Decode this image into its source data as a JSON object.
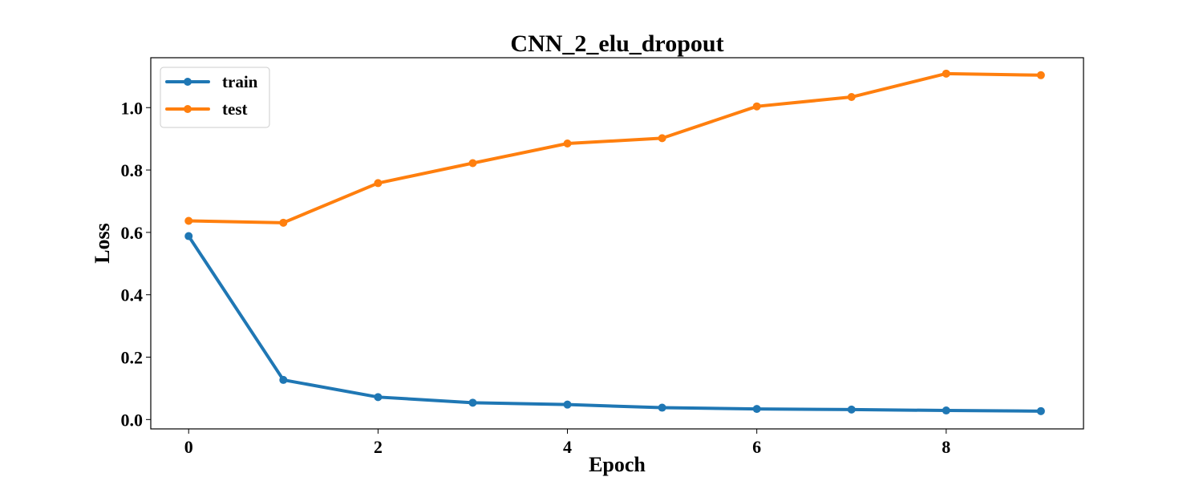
{
  "chart_data": {
    "type": "line",
    "title": "CNN_2_elu_dropout",
    "xlabel": "Epoch",
    "ylabel": "Loss",
    "x": [
      0,
      1,
      2,
      3,
      4,
      5,
      6,
      7,
      8,
      9
    ],
    "xlim": [
      -0.4,
      9.45
    ],
    "ylim": [
      -0.03,
      1.16
    ],
    "xticks": [
      0,
      2,
      4,
      6,
      8
    ],
    "xtick_labels": [
      "0",
      "2",
      "4",
      "6",
      "8"
    ],
    "yticks": [
      0.0,
      0.2,
      0.4,
      0.6,
      0.8,
      1.0
    ],
    "ytick_labels": [
      "0.0",
      "0.2",
      "0.4",
      "0.6",
      "0.8",
      "1.0"
    ],
    "grid": false,
    "legend_position": "top-left",
    "series": [
      {
        "name": "train",
        "color": "#1f77b4",
        "values": [
          0.588,
          0.127,
          0.072,
          0.054,
          0.048,
          0.038,
          0.034,
          0.032,
          0.029,
          0.027
        ]
      },
      {
        "name": "test",
        "color": "#ff7f0e",
        "values": [
          0.637,
          0.631,
          0.758,
          0.822,
          0.885,
          0.902,
          1.004,
          1.034,
          1.109,
          1.104
        ]
      }
    ]
  }
}
